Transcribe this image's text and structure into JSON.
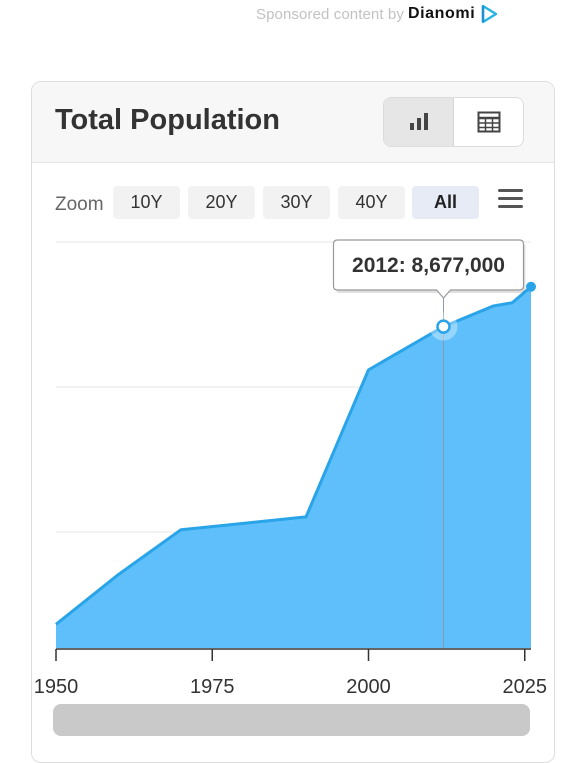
{
  "sponsor": {
    "text": "Sponsored content by",
    "brand": "Dianomi",
    "logo_icon": "dianomi-play-icon"
  },
  "card": {
    "title": "Total Population",
    "view_buttons": [
      {
        "icon": "bar-chart-icon",
        "active": true
      },
      {
        "icon": "table-icon",
        "active": false
      }
    ]
  },
  "zoom": {
    "label": "Zoom",
    "options": [
      "10Y",
      "20Y",
      "30Y",
      "40Y",
      "All"
    ],
    "active": "All",
    "menu_icon": "hamburger-menu-icon"
  },
  "colors": {
    "area_fill": "#5fbffa",
    "line": "#2aa4e8",
    "accent_point": "#2aa4e8"
  },
  "tooltip": {
    "text": "2012: 8,677,000"
  },
  "chart_data": {
    "type": "area",
    "title": "Total Population",
    "x": [
      1950,
      1960,
      1970,
      1980,
      1990,
      2000,
      2012,
      2020,
      2023,
      2026
    ],
    "series": [
      {
        "values": [
          4020000,
          4800000,
          5500000,
          5600000,
          5700000,
          8000000,
          8677000,
          9000000,
          9050000,
          9300000
        ]
      }
    ],
    "xticks": [
      1950,
      1975,
      2000,
      2025
    ],
    "xlim": [
      1950,
      2026
    ],
    "ylim": [
      3650000,
      10000000
    ],
    "grid": true,
    "highlighted_point": {
      "x": 2012,
      "y": 8677000
    }
  }
}
